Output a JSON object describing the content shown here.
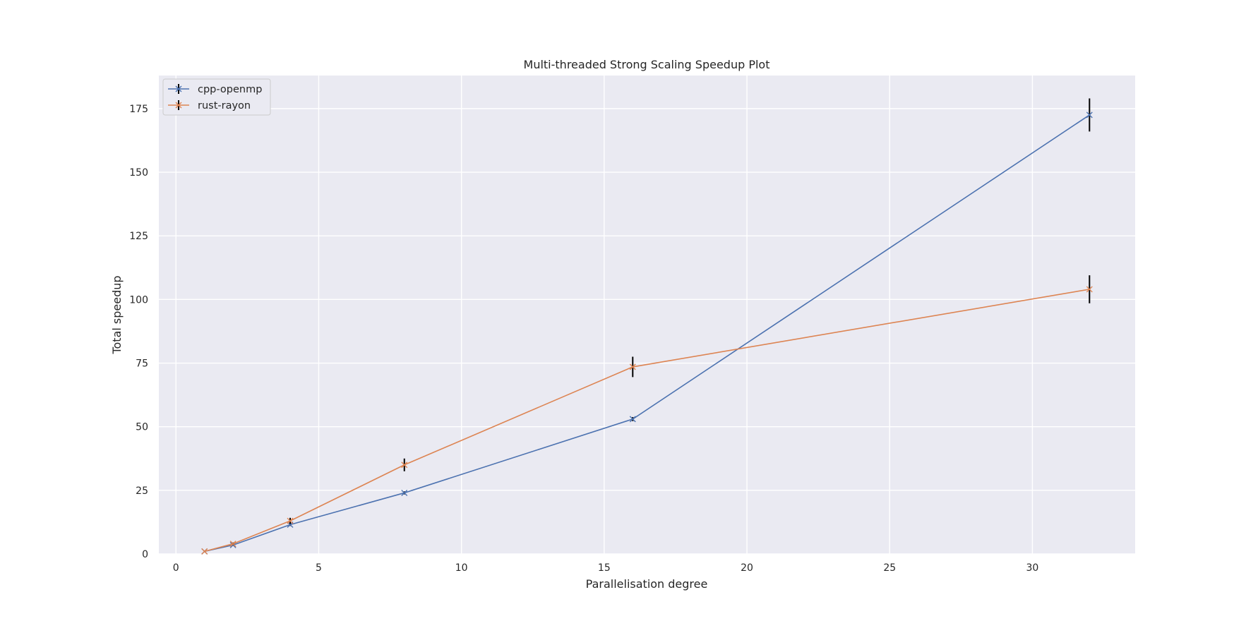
{
  "chart_data": {
    "type": "line",
    "title": "Multi-threaded Strong Scaling Speedup Plot",
    "xlabel": "Parallelisation degree",
    "ylabel": "Total speedup",
    "xlim": [
      -0.6,
      33.6
    ],
    "ylim": [
      0,
      188
    ],
    "xticks": [
      0,
      5,
      10,
      15,
      20,
      25,
      30
    ],
    "yticks": [
      0,
      25,
      50,
      75,
      100,
      125,
      150,
      175
    ],
    "grid": true,
    "legend_position": "top-left",
    "marker": "x",
    "series": [
      {
        "name": "cpp-openmp",
        "color": "#4c72b0",
        "x": [
          1,
          2,
          4,
          8,
          16,
          32
        ],
        "y": [
          1,
          3.5,
          11.5,
          24,
          53,
          172.5
        ],
        "err": [
          0.2,
          0.3,
          0.5,
          0.6,
          0.8,
          6.5
        ]
      },
      {
        "name": "rust-rayon",
        "color": "#dd8452",
        "x": [
          1,
          2,
          4,
          8,
          16,
          32
        ],
        "y": [
          1,
          4,
          13,
          35,
          73.5,
          104
        ],
        "err": [
          0.3,
          0.5,
          1.2,
          2.5,
          4,
          5.5
        ]
      }
    ]
  }
}
